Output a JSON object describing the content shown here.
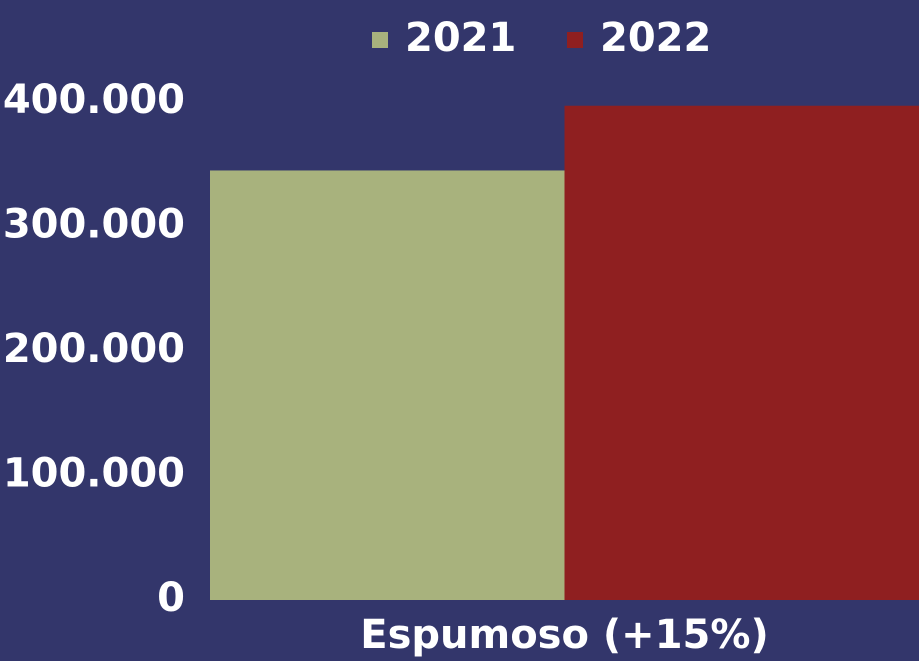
{
  "chart_data": {
    "type": "bar",
    "categories": [
      "Espumoso (+15%)"
    ],
    "series": [
      {
        "name": "2021",
        "color": "#a8b27d",
        "values": [
          345000
        ]
      },
      {
        "name": "2022",
        "color": "#8f1f20",
        "values": [
          397000
        ]
      }
    ],
    "ylim": [
      0,
      400000
    ],
    "yticks": [
      0,
      {
        "value": 100000,
        "label": "100.000"
      },
      {
        "value": 200000,
        "label": "200.000"
      },
      {
        "value": 300000,
        "label": "300.000"
      },
      {
        "value": 400000,
        "label": "400.000"
      }
    ],
    "grid": false,
    "legend": "top"
  }
}
